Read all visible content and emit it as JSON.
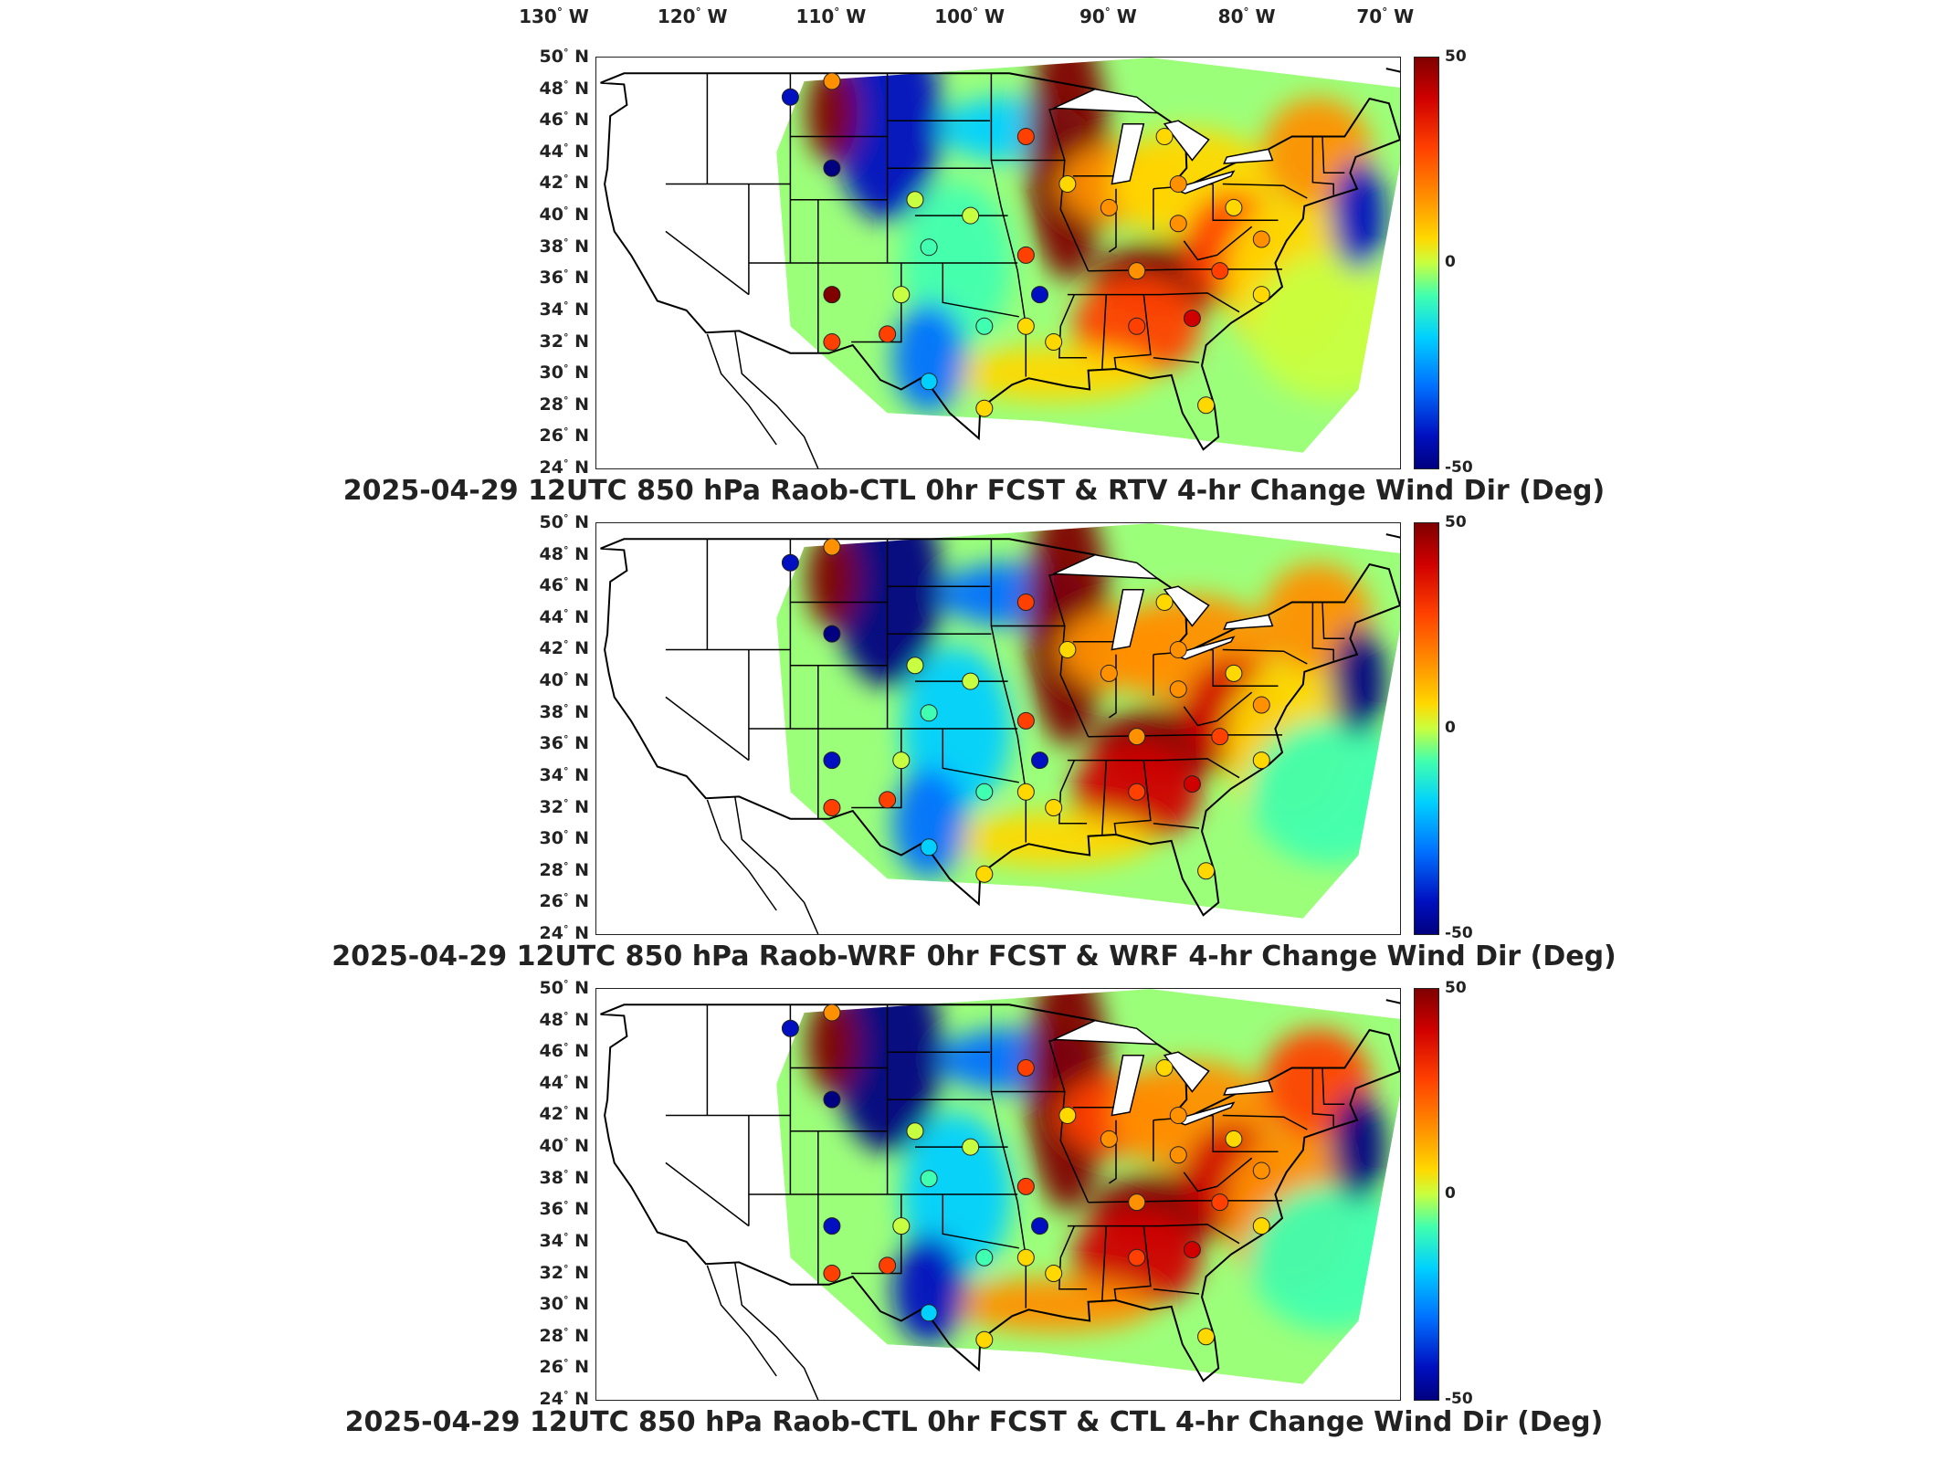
{
  "longitude_labels": [
    {
      "deg": "130",
      "dir": "W",
      "lon": -130
    },
    {
      "deg": "120",
      "dir": "W",
      "lon": -120
    },
    {
      "deg": "110",
      "dir": "W",
      "lon": -110
    },
    {
      "deg": "100",
      "dir": "W",
      "lon": -100
    },
    {
      "deg": "90",
      "dir": "W",
      "lon": -90
    },
    {
      "deg": "80",
      "dir": "W",
      "lon": -80
    },
    {
      "deg": "70",
      "dir": "W",
      "lon": -70
    }
  ],
  "latitude_labels": [
    {
      "deg": "50",
      "dir": "N",
      "lat": 50
    },
    {
      "deg": "48",
      "dir": "N",
      "lat": 48
    },
    {
      "deg": "46",
      "dir": "N",
      "lat": 46
    },
    {
      "deg": "44",
      "dir": "N",
      "lat": 44
    },
    {
      "deg": "42",
      "dir": "N",
      "lat": 42
    },
    {
      "deg": "40",
      "dir": "N",
      "lat": 40
    },
    {
      "deg": "38",
      "dir": "N",
      "lat": 38
    },
    {
      "deg": "36",
      "dir": "N",
      "lat": 36
    },
    {
      "deg": "34",
      "dir": "N",
      "lat": 34
    },
    {
      "deg": "32",
      "dir": "N",
      "lat": 32
    },
    {
      "deg": "30",
      "dir": "N",
      "lat": 30
    },
    {
      "deg": "28",
      "dir": "N",
      "lat": 28
    },
    {
      "deg": "26",
      "dir": "N",
      "lat": 26
    },
    {
      "deg": "24",
      "dir": "N",
      "lat": 24
    }
  ],
  "colorbar": {
    "max_label": "50",
    "mid_label": "0",
    "min_label": "-50"
  },
  "panels": [
    {
      "title": "2025-04-29 12UTC 850 hPa Raob-CTL 0hr FCST & RTV 4-hr Change Wind Dir (Deg)"
    },
    {
      "title": "2025-04-29 12UTC 850 hPa Raob-WRF 0hr FCST & WRF 4-hr Change Wind Dir (Deg)"
    },
    {
      "title": "2025-04-29 12UTC 850 hPa Raob-CTL 0hr FCST & CTL 4-hr Change Wind Dir (Deg)"
    }
  ],
  "color_scale": {
    "min": -50,
    "max": 50,
    "colors": [
      "#000080",
      "#0010c0",
      "#0070ff",
      "#00d0ff",
      "#40ffb0",
      "#c8ff40",
      "#ffd800",
      "#ff9000",
      "#ff4000",
      "#d00000",
      "#800000"
    ]
  },
  "stations": [
    {
      "lon": -111,
      "lat": 47.5,
      "v": [
        -40,
        -40,
        -40
      ]
    },
    {
      "lon": -108,
      "lat": 48.5,
      "v": [
        15,
        15,
        15
      ]
    },
    {
      "lon": -108,
      "lat": 43,
      "v": [
        -48,
        -48,
        -48
      ]
    },
    {
      "lon": -108,
      "lat": 35,
      "v": [
        50,
        -40,
        -40
      ]
    },
    {
      "lon": -108,
      "lat": 32,
      "v": [
        25,
        25,
        25
      ]
    },
    {
      "lon": -104,
      "lat": 32.5,
      "v": [
        25,
        25,
        25
      ]
    },
    {
      "lon": -102,
      "lat": 41,
      "v": [
        -5,
        -5,
        -5
      ]
    },
    {
      "lon": -101,
      "lat": 38,
      "v": [
        -10,
        -10,
        -10
      ]
    },
    {
      "lon": -103,
      "lat": 35,
      "v": [
        -5,
        -5,
        -5
      ]
    },
    {
      "lon": -98,
      "lat": 40,
      "v": [
        0,
        0,
        0
      ]
    },
    {
      "lon": -97,
      "lat": 33,
      "v": [
        -10,
        -10,
        -10
      ]
    },
    {
      "lon": -94,
      "lat": 45,
      "v": [
        25,
        25,
        25
      ]
    },
    {
      "lon": -94,
      "lat": 37.5,
      "v": [
        30,
        30,
        30
      ]
    },
    {
      "lon": -93,
      "lat": 35,
      "v": [
        -45,
        -45,
        -45
      ]
    },
    {
      "lon": -92,
      "lat": 32,
      "v": [
        5,
        5,
        5
      ]
    },
    {
      "lon": -91,
      "lat": 42,
      "v": [
        5,
        5,
        5
      ]
    },
    {
      "lon": -88,
      "lat": 40.5,
      "v": [
        15,
        15,
        15
      ]
    },
    {
      "lon": -86,
      "lat": 36.5,
      "v": [
        15,
        15,
        15
      ]
    },
    {
      "lon": -86,
      "lat": 33,
      "v": [
        25,
        25,
        25
      ]
    },
    {
      "lon": -84,
      "lat": 45,
      "v": [
        5,
        5,
        5
      ]
    },
    {
      "lon": -83,
      "lat": 42,
      "v": [
        15,
        15,
        15
      ]
    },
    {
      "lon": -83,
      "lat": 39.5,
      "v": [
        15,
        15,
        15
      ]
    },
    {
      "lon": -82,
      "lat": 33.5,
      "v": [
        40,
        40,
        40
      ]
    },
    {
      "lon": -80,
      "lat": 36.5,
      "v": [
        25,
        25,
        25
      ]
    },
    {
      "lon": -79,
      "lat": 40.5,
      "v": [
        10,
        10,
        10
      ]
    },
    {
      "lon": -77,
      "lat": 38.5,
      "v": [
        20,
        20,
        20
      ]
    },
    {
      "lon": -77,
      "lat": 35,
      "v": [
        5,
        5,
        5
      ]
    },
    {
      "lon": -81,
      "lat": 28,
      "v": [
        5,
        5,
        5
      ]
    },
    {
      "lon": -97,
      "lat": 27.8,
      "v": [
        5,
        5,
        5
      ]
    },
    {
      "lon": -101,
      "lat": 29.5,
      "v": [
        -20,
        -20,
        -20
      ]
    },
    {
      "lon": -94,
      "lat": 33,
      "v": [
        5,
        5,
        5
      ]
    }
  ]
}
